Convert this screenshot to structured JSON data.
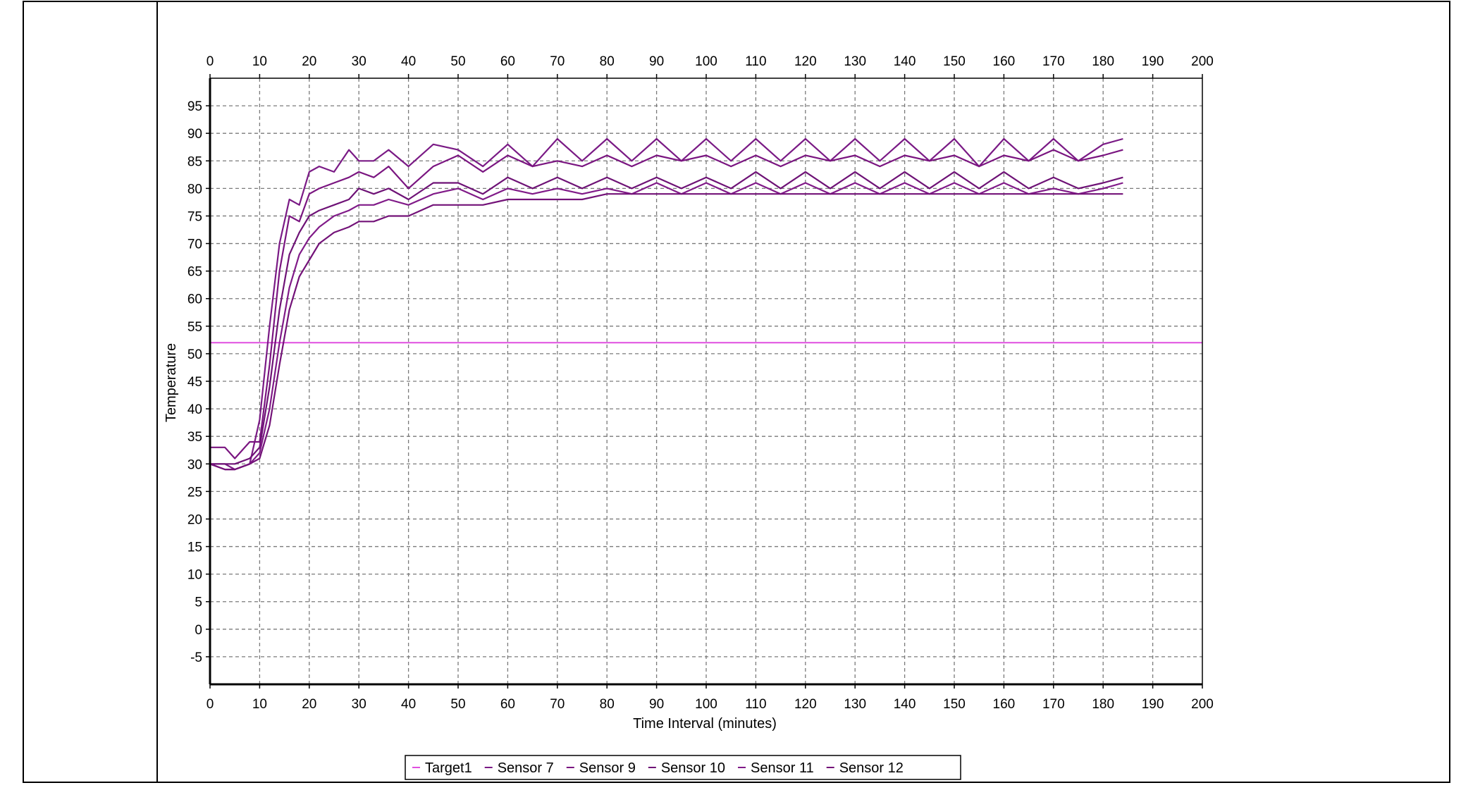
{
  "chart_data": {
    "type": "line",
    "title": "",
    "xlabel": "Time Interval (minutes)",
    "ylabel": "Temperature",
    "xlim": [
      0,
      200
    ],
    "ylim": [
      -10,
      100
    ],
    "xticks": [
      0,
      10,
      20,
      30,
      40,
      50,
      60,
      70,
      80,
      90,
      100,
      110,
      120,
      130,
      140,
      150,
      160,
      170,
      180,
      190,
      200
    ],
    "xtick_labels": [
      "0",
      "10",
      "20",
      "30",
      "40",
      "50",
      "60",
      "70",
      "80",
      "90",
      "100",
      "110",
      "120",
      "130",
      "140",
      "150",
      "160",
      "170",
      "180",
      "190",
      "200"
    ],
    "yticks": [
      95,
      90,
      85,
      80,
      75,
      70,
      65,
      60,
      55,
      50,
      45,
      40,
      35,
      30,
      25,
      20,
      15,
      10,
      5,
      0,
      -5
    ],
    "ytick_labels": [
      "95",
      "90",
      "85",
      "80",
      "75",
      "70",
      "65",
      "60",
      "55",
      "50",
      "45",
      "40",
      "35",
      "30",
      "25",
      "20",
      "15",
      "10",
      "5",
      "0",
      "-5"
    ],
    "grid": true,
    "x_axis_duplicated_top": true,
    "legend_position": "bottom-center",
    "colors": {
      "target": "#e04fe0",
      "sensor": "#7a1580",
      "grid": "#7a7a7a",
      "axis": "#000000"
    },
    "series": [
      {
        "name": "Target1",
        "color": "#e04fe0",
        "x": [
          0,
          200
        ],
        "y": [
          52,
          52
        ]
      },
      {
        "name": "Sensor 7",
        "color": "#7a1a85",
        "x": [
          0,
          3,
          5,
          8,
          10,
          12,
          14,
          16,
          18,
          20,
          22,
          25,
          28,
          30,
          33,
          36,
          40,
          45,
          50,
          55,
          60,
          65,
          70,
          75,
          80,
          85,
          90,
          95,
          100,
          105,
          110,
          115,
          120,
          125,
          130,
          135,
          140,
          145,
          150,
          155,
          160,
          165,
          170,
          175,
          180,
          184
        ],
        "y": [
          30,
          30,
          29,
          30,
          38,
          55,
          70,
          78,
          77,
          83,
          84,
          83,
          87,
          85,
          85,
          87,
          84,
          88,
          87,
          84,
          88,
          84,
          89,
          85,
          89,
          85,
          89,
          85,
          89,
          85,
          89,
          85,
          89,
          85,
          89,
          85,
          89,
          85,
          89,
          84,
          89,
          85,
          89,
          85,
          88,
          89
        ]
      },
      {
        "name": "Sensor 9",
        "color": "#7a1580",
        "x": [
          0,
          3,
          5,
          8,
          10,
          12,
          14,
          16,
          18,
          20,
          22,
          25,
          28,
          30,
          33,
          36,
          40,
          45,
          50,
          55,
          60,
          65,
          70,
          75,
          80,
          85,
          90,
          95,
          100,
          105,
          110,
          115,
          120,
          125,
          130,
          135,
          140,
          145,
          150,
          155,
          160,
          165,
          170,
          175,
          180,
          184
        ],
        "y": [
          33,
          33,
          31,
          34,
          34,
          48,
          65,
          75,
          74,
          79,
          80,
          81,
          82,
          83,
          82,
          84,
          80,
          84,
          86,
          83,
          86,
          84,
          85,
          84,
          86,
          84,
          86,
          85,
          86,
          84,
          86,
          84,
          86,
          85,
          86,
          84,
          86,
          85,
          86,
          84,
          86,
          85,
          87,
          85,
          86,
          87
        ]
      },
      {
        "name": "Sensor 10",
        "color": "#6e1276",
        "x": [
          0,
          3,
          5,
          8,
          10,
          12,
          14,
          16,
          18,
          20,
          22,
          25,
          28,
          30,
          33,
          36,
          40,
          45,
          50,
          55,
          60,
          65,
          70,
          75,
          80,
          85,
          90,
          95,
          100,
          105,
          110,
          115,
          120,
          125,
          130,
          135,
          140,
          145,
          150,
          155,
          160,
          165,
          170,
          175,
          180,
          184
        ],
        "y": [
          30,
          30,
          30,
          31,
          33,
          44,
          58,
          68,
          72,
          75,
          76,
          77,
          78,
          80,
          79,
          80,
          78,
          81,
          81,
          79,
          82,
          80,
          82,
          80,
          82,
          80,
          82,
          80,
          82,
          80,
          83,
          80,
          83,
          80,
          83,
          80,
          83,
          80,
          83,
          80,
          83,
          80,
          82,
          80,
          81,
          82
        ]
      },
      {
        "name": "Sensor 11",
        "color": "#801a88",
        "x": [
          0,
          3,
          5,
          8,
          10,
          12,
          14,
          16,
          18,
          20,
          22,
          25,
          28,
          30,
          33,
          36,
          40,
          45,
          50,
          55,
          60,
          65,
          70,
          75,
          80,
          85,
          90,
          95,
          100,
          105,
          110,
          115,
          120,
          125,
          130,
          135,
          140,
          145,
          150,
          155,
          160,
          165,
          170,
          175,
          180,
          184
        ],
        "y": [
          30,
          29,
          29,
          30,
          32,
          40,
          52,
          62,
          68,
          71,
          73,
          75,
          76,
          77,
          77,
          78,
          77,
          79,
          80,
          78,
          80,
          79,
          80,
          79,
          80,
          79,
          81,
          79,
          81,
          79,
          81,
          79,
          81,
          79,
          81,
          79,
          81,
          79,
          81,
          79,
          81,
          79,
          80,
          79,
          80,
          81
        ]
      },
      {
        "name": "Sensor 12",
        "color": "#731278",
        "x": [
          0,
          3,
          5,
          8,
          10,
          12,
          14,
          16,
          18,
          20,
          22,
          25,
          28,
          30,
          33,
          36,
          40,
          45,
          50,
          55,
          60,
          65,
          70,
          75,
          80,
          85,
          90,
          95,
          100,
          105,
          110,
          115,
          120,
          125,
          130,
          135,
          140,
          145,
          150,
          155,
          160,
          165,
          170,
          175,
          180,
          184
        ],
        "y": [
          30,
          29,
          29,
          30,
          31,
          37,
          48,
          58,
          64,
          67,
          70,
          72,
          73,
          74,
          74,
          75,
          75,
          77,
          77,
          77,
          78,
          78,
          78,
          78,
          79,
          79,
          79,
          79,
          79,
          79,
          79,
          79,
          79,
          79,
          79,
          79,
          79,
          79,
          79,
          79,
          79,
          79,
          79,
          79,
          79,
          79
        ]
      }
    ]
  }
}
